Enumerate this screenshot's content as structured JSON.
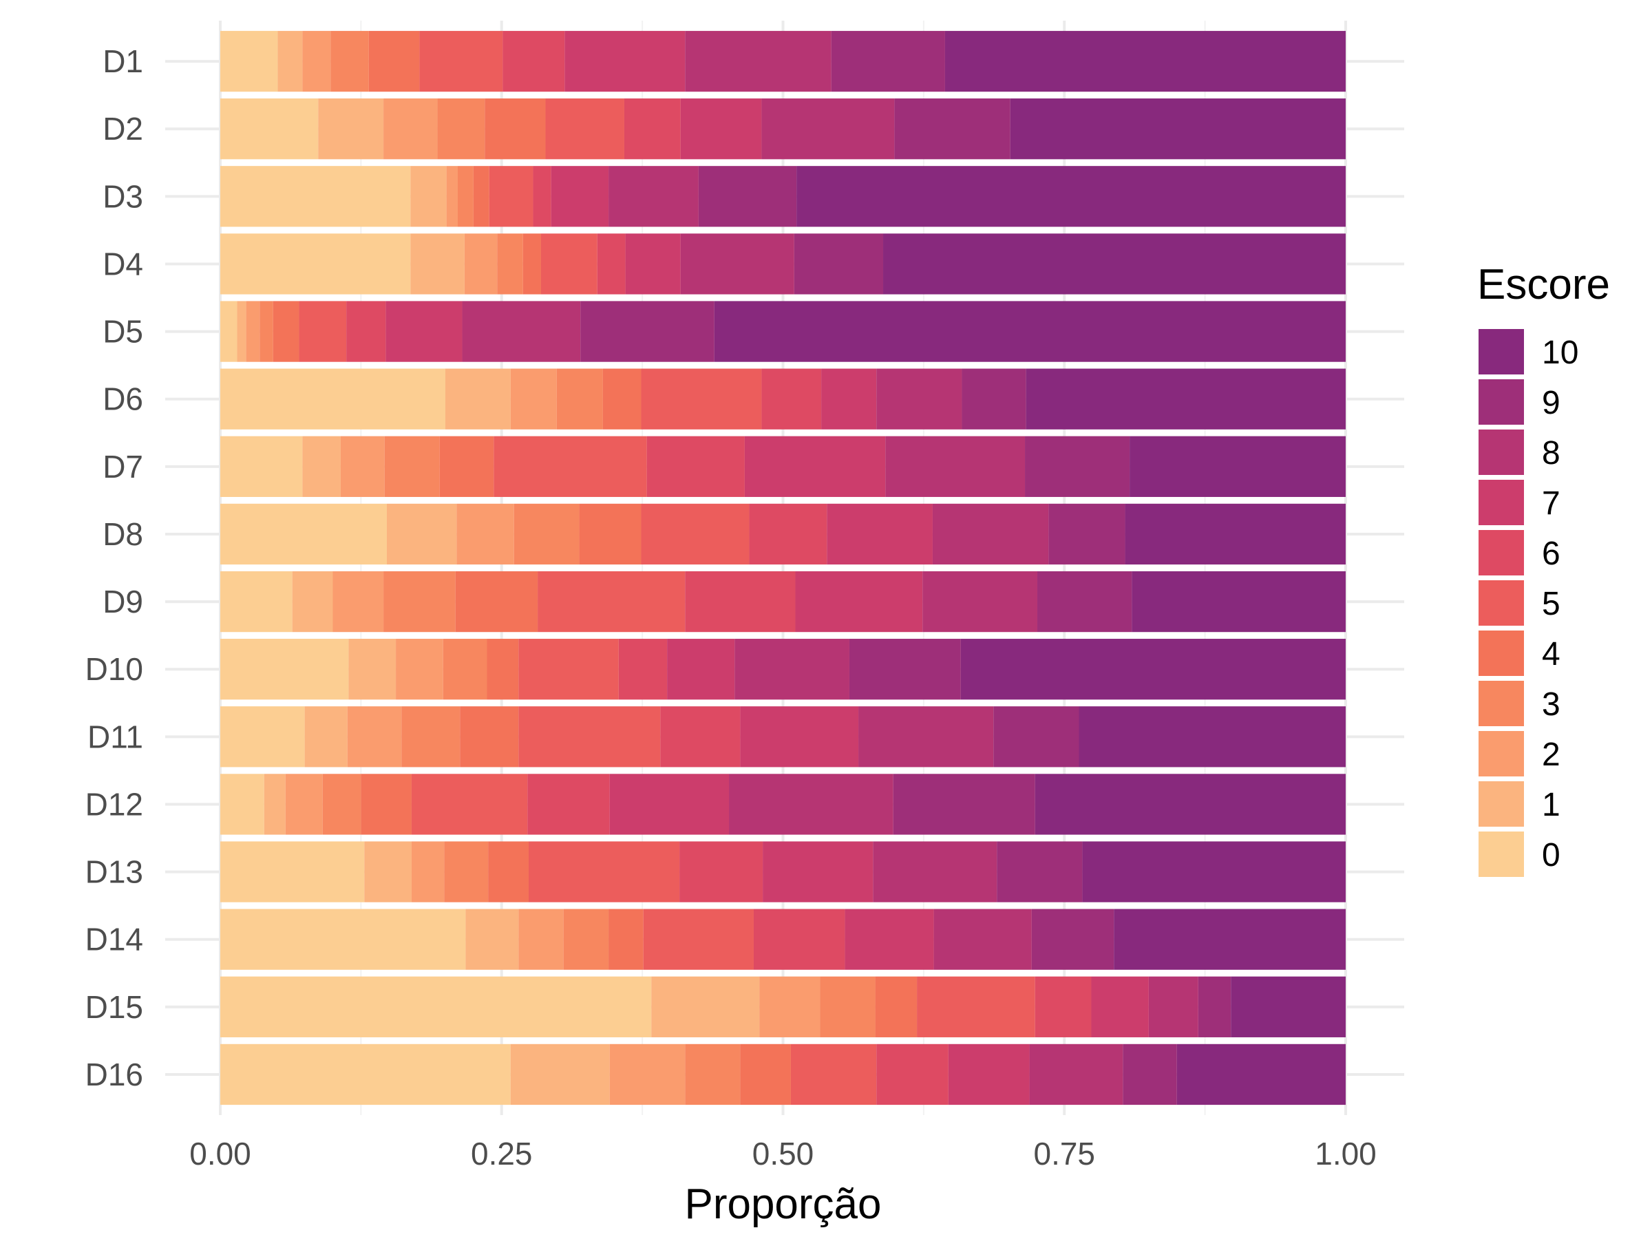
{
  "chart_data": {
    "type": "bar",
    "orientation": "horizontal",
    "stacked": true,
    "categories": [
      "D1",
      "D2",
      "D3",
      "D4",
      "D5",
      "D6",
      "D7",
      "D8",
      "D9",
      "D10",
      "D11",
      "D12",
      "D13",
      "D14",
      "D15",
      "D16"
    ],
    "series": [
      {
        "name": "0",
        "color": "#FCCE92",
        "values": [
          0.051,
          0.087,
          0.169,
          0.169,
          0.015,
          0.2,
          0.073,
          0.148,
          0.064,
          0.114,
          0.075,
          0.039,
          0.128,
          0.218,
          0.383,
          0.258
        ]
      },
      {
        "name": "1",
        "color": "#FBB47F",
        "values": [
          0.022,
          0.058,
          0.032,
          0.048,
          0.008,
          0.058,
          0.034,
          0.062,
          0.036,
          0.042,
          0.038,
          0.019,
          0.042,
          0.047,
          0.096,
          0.088
        ]
      },
      {
        "name": "2",
        "color": "#FA9C6E",
        "values": [
          0.025,
          0.048,
          0.01,
          0.029,
          0.012,
          0.041,
          0.039,
          0.051,
          0.045,
          0.042,
          0.048,
          0.033,
          0.029,
          0.04,
          0.054,
          0.067
        ]
      },
      {
        "name": "3",
        "color": "#F7875F",
        "values": [
          0.034,
          0.042,
          0.014,
          0.023,
          0.012,
          0.041,
          0.049,
          0.058,
          0.064,
          0.039,
          0.052,
          0.034,
          0.039,
          0.04,
          0.049,
          0.049
        ]
      },
      {
        "name": "4",
        "color": "#F37358",
        "values": [
          0.045,
          0.054,
          0.014,
          0.016,
          0.023,
          0.034,
          0.048,
          0.055,
          0.073,
          0.028,
          0.052,
          0.045,
          0.036,
          0.031,
          0.037,
          0.045
        ]
      },
      {
        "name": "5",
        "color": "#EC5D5C",
        "values": [
          0.074,
          0.07,
          0.039,
          0.05,
          0.042,
          0.107,
          0.136,
          0.096,
          0.131,
          0.089,
          0.126,
          0.103,
          0.134,
          0.098,
          0.105,
          0.076
        ]
      },
      {
        "name": "6",
        "color": "#DE4A63",
        "values": [
          0.055,
          0.05,
          0.016,
          0.025,
          0.035,
          0.053,
          0.087,
          0.069,
          0.098,
          0.043,
          0.071,
          0.073,
          0.074,
          0.081,
          0.05,
          0.064
        ]
      },
      {
        "name": "7",
        "color": "#CC3D6C",
        "values": [
          0.107,
          0.072,
          0.051,
          0.049,
          0.068,
          0.049,
          0.125,
          0.094,
          0.113,
          0.06,
          0.105,
          0.106,
          0.098,
          0.079,
          0.051,
          0.072
        ]
      },
      {
        "name": "8",
        "color": "#B63573",
        "values": [
          0.13,
          0.118,
          0.08,
          0.101,
          0.105,
          0.076,
          0.124,
          0.103,
          0.102,
          0.102,
          0.12,
          0.146,
          0.11,
          0.087,
          0.044,
          0.083
        ]
      },
      {
        "name": "9",
        "color": "#9E2F79",
        "values": [
          0.101,
          0.103,
          0.087,
          0.079,
          0.119,
          0.057,
          0.093,
          0.068,
          0.084,
          0.099,
          0.076,
          0.126,
          0.076,
          0.073,
          0.029,
          0.048
        ]
      },
      {
        "name": "10",
        "color": "#88297D",
        "values": [
          0.356,
          0.298,
          0.488,
          0.411,
          0.561,
          0.284,
          0.192,
          0.196,
          0.19,
          0.342,
          0.237,
          0.276,
          0.234,
          0.206,
          0.102,
          0.15
        ]
      }
    ],
    "xlabel": "Proporção",
    "ylabel": "",
    "xlim": [
      0,
      1
    ],
    "x_ticks": [
      "0.00",
      "0.25",
      "0.50",
      "0.75",
      "1.00"
    ],
    "legend": {
      "title": "Escore",
      "placement": "right",
      "labels": [
        "10",
        "9",
        "8",
        "7",
        "6",
        "5",
        "4",
        "3",
        "2",
        "1",
        "0"
      ]
    },
    "grid": true
  }
}
